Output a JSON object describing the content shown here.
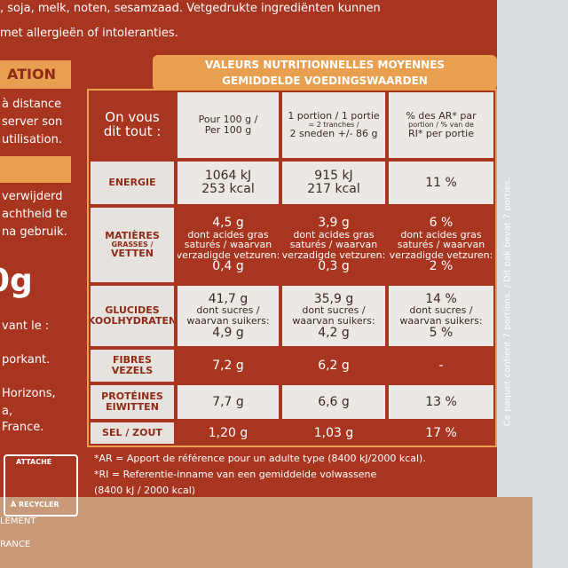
{
  "top_text": [
    ", soja, melk, noten, sesamzaad. Vetgedrukte ingrediënten kunnen",
    "met allergieën of intoleranties."
  ],
  "left_text": [
    "ATION",
    "à distance",
    "server son",
    "utilisation.",
    "verwijderd",
    "achtheid te",
    "na gebruik.",
    "0g",
    "vant le :",
    "porkant.",
    "Horizons,",
    "a,",
    "France.",
    "ATTACHE",
    "À RECYCLER",
    "LEMENT",
    "RANCE"
  ],
  "table": {
    "title": [
      "VALEURS NUTRITIONNELLES MOYENNES",
      "GEMIDDELDE VOEDINGSWAARDEN"
    ],
    "header": [
      [
        "On vous",
        "dit tout :"
      ],
      [
        "Pour 100 g /",
        "Per 100 g"
      ],
      [
        "1 portion / 1 portie",
        "= 2 tranches /",
        "2 sneden +/- 86 g"
      ],
      [
        "% des AR* par",
        "portion / % van de",
        "RI* per portie"
      ]
    ],
    "rows": [
      {
        "label": [
          "ENERGIE"
        ],
        "cells": [
          [
            "1064 kJ",
            "253 kcal"
          ],
          [
            "915 kJ",
            "217 kcal"
          ],
          [
            "11 %"
          ]
        ]
      },
      {
        "label": [
          "MATIÈRES",
          "GRASSES /",
          "VETTEN"
        ],
        "cells": [
          [
            "4,5 g",
            "dont acides gras",
            "saturés / waarvan",
            "verzadigde vetzuren:",
            "0,4 g"
          ],
          [
            "3,9 g",
            "dont acides gras",
            "saturés / waarvan",
            "verzadigde vetzuren:",
            "0,3 g"
          ],
          [
            "6 %",
            "dont acides gras",
            "saturés / waarvan",
            "verzadigde vetzuren:",
            "2 %"
          ]
        ]
      },
      {
        "label": [
          "GLUCIDES",
          "KOOLHYDRATEN"
        ],
        "cells": [
          [
            "41,7 g",
            "dont sucres /",
            "waarvan suikers:",
            "4,9 g"
          ],
          [
            "35,9 g",
            "dont sucres /",
            "waarvan suikers:",
            "4,2 g"
          ],
          [
            "14 %",
            "dont sucres /",
            "waarvan suikers:",
            "5 %"
          ]
        ]
      },
      {
        "label": [
          "FIBRES",
          "VEZELS"
        ],
        "cells": [
          [
            "7,2 g"
          ],
          [
            "6,2 g"
          ],
          [
            "-"
          ]
        ]
      },
      {
        "label": [
          "PROTÉINES",
          "EIWITTEN"
        ],
        "cells": [
          [
            "7,7 g"
          ],
          [
            "6,6 g"
          ],
          [
            "13 %"
          ]
        ]
      },
      {
        "label": [
          "SEL / ZOUT"
        ],
        "cells": [
          [
            "1,20 g"
          ],
          [
            "1,03 g"
          ],
          [
            "17 %"
          ]
        ]
      }
    ],
    "footnotes": [
      "*AR = Apport de référence pour un adulte type (8400 kJ/2000 kcal).",
      "*RI = Referentie-inname van een gemiddelde volwassene",
      "(8400 kJ / 2000 kcal)"
    ],
    "side_note": "Ce paquet contient 7 portions. / Dit pak bevat 7 porties."
  }
}
